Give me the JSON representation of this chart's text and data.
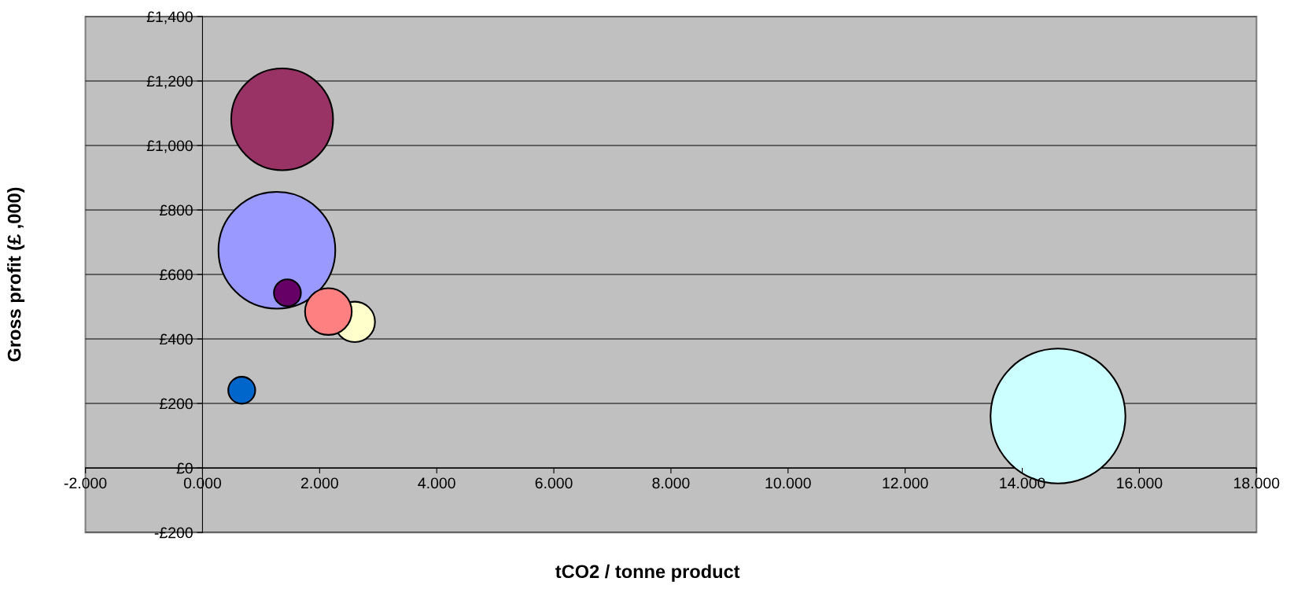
{
  "chart_data": {
    "type": "bubble",
    "xlabel": "tCO2 / tonne product",
    "ylabel": "Gross profit (£ ,000)",
    "x": [
      1.36,
      1.27,
      1.45,
      2.6,
      2.15,
      0.67,
      14.61
    ],
    "values": [
      1081,
      675,
      543,
      453,
      485,
      241,
      161
    ],
    "sizes": [
      0.57,
      0.75,
      0.04,
      0.09,
      0.12,
      0.04,
      1
    ],
    "colors": [
      "#993366",
      "#9999ff",
      "#660066",
      "#ffffcc",
      "#ff8080",
      "#0066cc",
      "#ccffff"
    ],
    "xlim": [
      -2,
      18
    ],
    "xticks": [
      {
        "value": -2,
        "label": "-2.000"
      },
      {
        "value": 0,
        "label": "0.000"
      },
      {
        "value": 2,
        "label": "2.000"
      },
      {
        "value": 4,
        "label": "4.000"
      },
      {
        "value": 6,
        "label": "6.000"
      },
      {
        "value": 8,
        "label": "8.000"
      },
      {
        "value": 10,
        "label": "10.000"
      },
      {
        "value": 12,
        "label": "12.000"
      },
      {
        "value": 14,
        "label": "14.000"
      },
      {
        "value": 16,
        "label": "16.000"
      },
      {
        "value": 18,
        "label": "18.000"
      }
    ],
    "ylim": [
      -200,
      1400
    ],
    "yticks": [
      {
        "value": -200,
        "label": "-£200"
      },
      {
        "value": 0,
        "label": "£0"
      },
      {
        "value": 200,
        "label": "£200"
      },
      {
        "value": 400,
        "label": "£400"
      },
      {
        "value": 600,
        "label": "£600"
      },
      {
        "value": 800,
        "label": "£800"
      },
      {
        "value": 1000,
        "label": "£1,000"
      },
      {
        "value": 1200,
        "label": "£1,200"
      },
      {
        "value": 1400,
        "label": "£1,400"
      }
    ],
    "grid": "y"
  }
}
